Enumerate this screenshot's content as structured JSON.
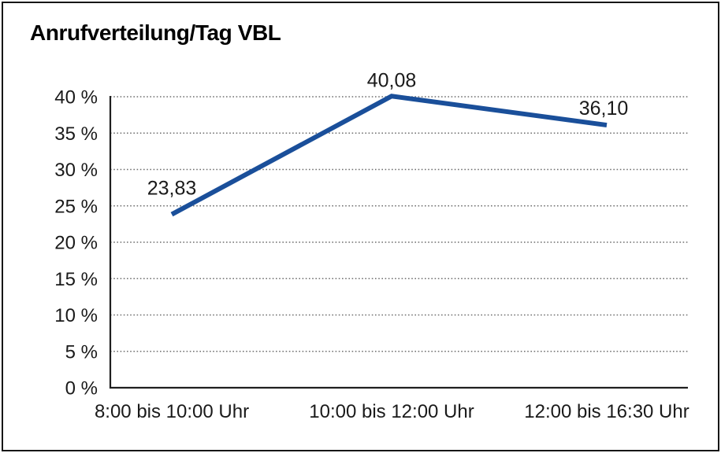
{
  "chart_data": {
    "type": "line",
    "title": "Anrufverteilung/Tag VBL",
    "categories": [
      "8:00 bis 10:00 Uhr",
      "10:00 bis 12:00 Uhr",
      "12:00 bis 16:30 Uhr"
    ],
    "values": [
      23.83,
      40.08,
      36.1
    ],
    "data_labels": [
      "23,83",
      "40,08",
      "36,10"
    ],
    "ytick_labels": [
      "0 %",
      "5 %",
      "10 %",
      "15 %",
      "20 %",
      "25 %",
      "30 %",
      "35 %",
      "40 %"
    ],
    "ytick_values": [
      0,
      5,
      10,
      15,
      20,
      25,
      30,
      35,
      40
    ],
    "ylim": [
      0,
      40
    ],
    "ytick_step": 5,
    "xlabel": "",
    "ylabel": "",
    "legend": "none",
    "grid": "horizontal-dotted",
    "colors": {
      "line": "#1A4F9A",
      "gridline": "#6F6F6F",
      "axis": "#1F1F1F",
      "tick_text": "#1A1A1A",
      "data_label_text": "#1A1A1A",
      "background": "#FFFFFF"
    }
  }
}
